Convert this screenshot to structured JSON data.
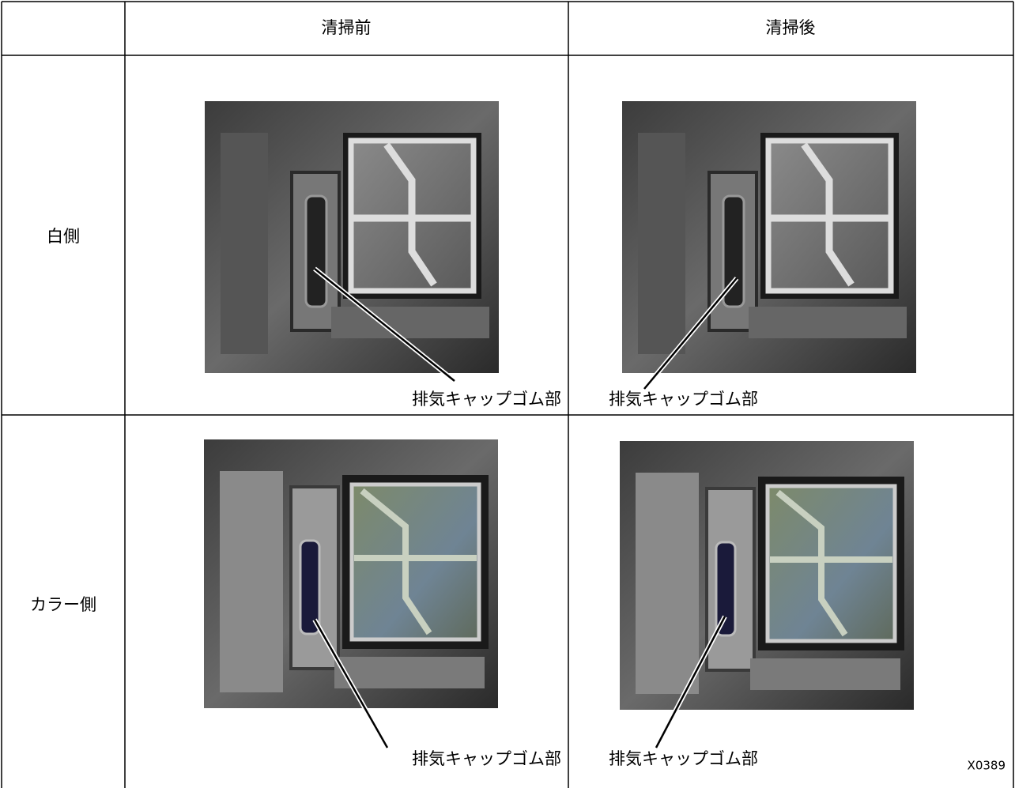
{
  "table": {
    "header": [
      "清掃前",
      "清掃後"
    ],
    "rows": [
      {
        "label": "白側",
        "before_callout": "排気キャップゴム部",
        "after_callout": "排気キャップゴム部"
      },
      {
        "label": "カラー側",
        "before_callout": "排気キャップゴム部",
        "after_callout": "排気キャップゴム部"
      }
    ]
  },
  "figure_code": "X0389"
}
